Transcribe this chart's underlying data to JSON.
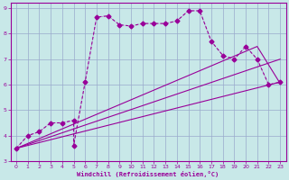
{
  "xlabel": "Windchill (Refroidissement éolien,°C)",
  "xlim": [
    -0.5,
    23.5
  ],
  "ylim": [
    3,
    9.2
  ],
  "xticks": [
    0,
    1,
    2,
    3,
    4,
    5,
    6,
    7,
    8,
    9,
    10,
    11,
    12,
    13,
    14,
    15,
    16,
    17,
    18,
    19,
    20,
    21,
    22,
    23
  ],
  "yticks": [
    3,
    4,
    5,
    6,
    7,
    8,
    9
  ],
  "bg_color": "#c8e8e8",
  "line_color": "#990099",
  "grid_color": "#99aacc",
  "line1_x": [
    0,
    1,
    2,
    3,
    4,
    5,
    5,
    6,
    7,
    8,
    9,
    10,
    11,
    12,
    13,
    14,
    15,
    16,
    17,
    18,
    19,
    20,
    21,
    22,
    23
  ],
  "line1_y": [
    3.5,
    4.0,
    4.15,
    4.5,
    4.5,
    4.6,
    3.6,
    6.1,
    8.65,
    8.7,
    8.35,
    8.3,
    8.4,
    8.4,
    8.4,
    8.5,
    8.9,
    8.9,
    7.7,
    7.15,
    7.0,
    7.5,
    7.0,
    6.0,
    6.1
  ],
  "line2_x": [
    0,
    23
  ],
  "line2_y": [
    3.5,
    6.1
  ],
  "line3_x": [
    0,
    21,
    23
  ],
  "line3_y": [
    3.5,
    7.5,
    6.05
  ],
  "line4_x": [
    0,
    23
  ],
  "line4_y": [
    3.5,
    7.0
  ],
  "marker": "D",
  "markersize": 2.5
}
